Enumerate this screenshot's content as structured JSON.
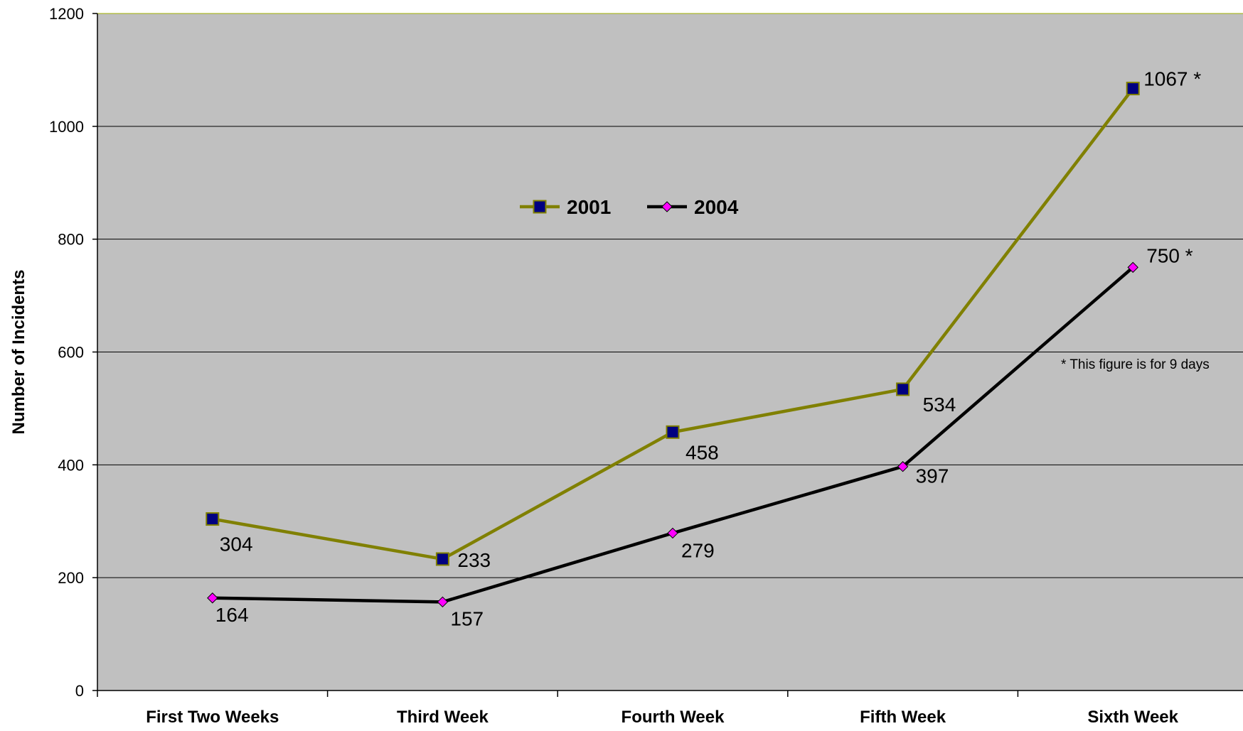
{
  "chart_data": {
    "type": "line",
    "categories": [
      "First Two Weeks",
      "Third Week",
      "Fourth Week",
      "Fifth Week",
      "Sixth Week"
    ],
    "series": [
      {
        "name": "2001",
        "values": [
          304,
          233,
          458,
          534,
          1067
        ],
        "labels": [
          "304",
          "233",
          "458",
          "534",
          "1067 *"
        ],
        "line_color": "#808000",
        "marker": "square",
        "marker_color": "#000080"
      },
      {
        "name": "2004",
        "values": [
          164,
          157,
          279,
          397,
          750
        ],
        "labels": [
          "164",
          "157",
          "279",
          "397",
          "750 *"
        ],
        "line_color": "#000000",
        "marker": "diamond",
        "marker_color": "#ff00ff"
      }
    ],
    "title": "",
    "xlabel": "",
    "ylabel": "Number of Incidents",
    "ylim": [
      0,
      1200
    ],
    "yticks": [
      0,
      200,
      400,
      600,
      800,
      1000,
      1200
    ],
    "grid": true,
    "legend_position": "top-center",
    "annotation": "* This figure is for 9 days",
    "plot_background": "#c0c0c0"
  }
}
